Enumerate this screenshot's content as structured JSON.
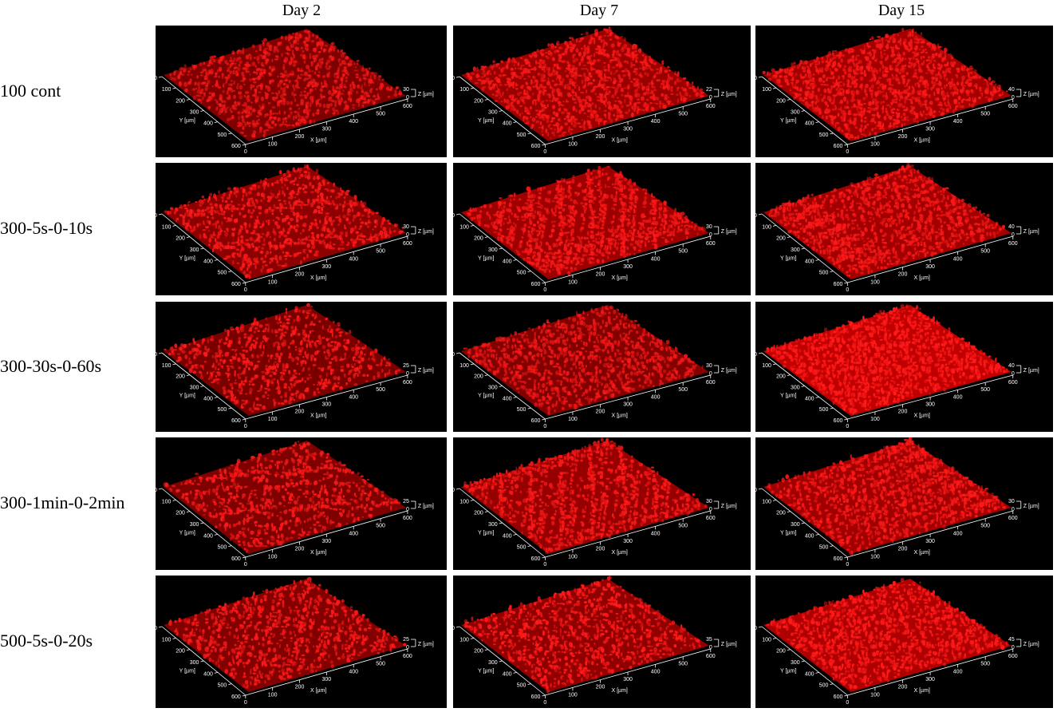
{
  "columns": [
    "Day 2",
    "Day 7",
    "Day 15"
  ],
  "rows": [
    {
      "label": "100 cont",
      "panels": [
        {
          "z_max": "30",
          "density": 0.55,
          "brightness": 0.55
        },
        {
          "z_max": "22",
          "density": 0.7,
          "brightness": 0.75
        },
        {
          "z_max": "40",
          "density": 0.75,
          "brightness": 0.8
        }
      ]
    },
    {
      "label": "300-5s-0-10s",
      "panels": [
        {
          "z_max": "30",
          "density": 0.45,
          "brightness": 0.9
        },
        {
          "z_max": "30",
          "density": 0.7,
          "brightness": 0.8
        },
        {
          "z_max": "40",
          "density": 0.75,
          "brightness": 0.8
        }
      ]
    },
    {
      "label": "300-30s-0-60s",
      "panels": [
        {
          "z_max": "25",
          "density": 0.3,
          "brightness": 0.9
        },
        {
          "z_max": "30",
          "density": 0.55,
          "brightness": 0.6
        },
        {
          "z_max": "40",
          "density": 0.85,
          "brightness": 1.0
        }
      ]
    },
    {
      "label": "300-1min-0-2min",
      "panels": [
        {
          "z_max": "25",
          "density": 0.35,
          "brightness": 0.85
        },
        {
          "z_max": "30",
          "density": 0.6,
          "brightness": 0.85
        },
        {
          "z_max": "30",
          "density": 0.7,
          "brightness": 0.85
        }
      ]
    },
    {
      "label": "500-5s-0-20s",
      "panels": [
        {
          "z_max": "25",
          "density": 0.4,
          "brightness": 0.85
        },
        {
          "z_max": "35",
          "density": 0.45,
          "brightness": 1.0
        },
        {
          "z_max": "45",
          "density": 0.7,
          "brightness": 1.0
        }
      ]
    }
  ],
  "axes": {
    "x_label": "X [µm]",
    "y_label": "Y [µm]",
    "z_label": "Z [µm]",
    "x_ticks": [
      "0",
      "100",
      "200",
      "300",
      "400",
      "500",
      "600"
    ],
    "y_ticks": [
      "0",
      "100",
      "200",
      "300",
      "400",
      "500",
      "600"
    ],
    "z_min": "0"
  },
  "colors": {
    "cell": "#ff1a1a",
    "background": "#000000",
    "axis": "#ffffff"
  }
}
